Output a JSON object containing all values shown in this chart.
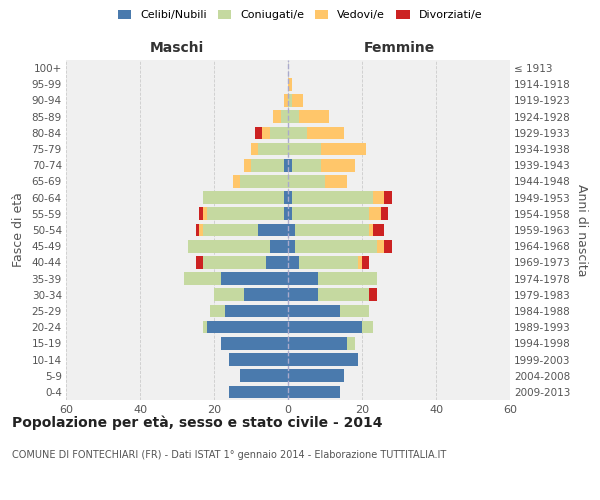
{
  "age_groups": [
    "0-4",
    "5-9",
    "10-14",
    "15-19",
    "20-24",
    "25-29",
    "30-34",
    "35-39",
    "40-44",
    "45-49",
    "50-54",
    "55-59",
    "60-64",
    "65-69",
    "70-74",
    "75-79",
    "80-84",
    "85-89",
    "90-94",
    "95-99",
    "100+"
  ],
  "birth_years": [
    "2009-2013",
    "2004-2008",
    "1999-2003",
    "1994-1998",
    "1989-1993",
    "1984-1988",
    "1979-1983",
    "1974-1978",
    "1969-1973",
    "1964-1968",
    "1959-1963",
    "1954-1958",
    "1949-1953",
    "1944-1948",
    "1939-1943",
    "1934-1938",
    "1929-1933",
    "1924-1928",
    "1919-1923",
    "1914-1918",
    "≤ 1913"
  ],
  "maschi": {
    "celibi": [
      16,
      13,
      16,
      18,
      22,
      17,
      12,
      18,
      6,
      5,
      8,
      1,
      1,
      0,
      1,
      0,
      0,
      0,
      0,
      0,
      0
    ],
    "coniugati": [
      0,
      0,
      0,
      0,
      1,
      4,
      8,
      10,
      17,
      22,
      15,
      21,
      22,
      13,
      9,
      8,
      5,
      2,
      0,
      0,
      0
    ],
    "vedovi": [
      0,
      0,
      0,
      0,
      0,
      0,
      0,
      0,
      0,
      0,
      1,
      1,
      0,
      2,
      2,
      2,
      2,
      2,
      1,
      0,
      0
    ],
    "divorziati": [
      0,
      0,
      0,
      0,
      0,
      0,
      0,
      0,
      2,
      0,
      1,
      1,
      0,
      0,
      0,
      0,
      2,
      0,
      0,
      0,
      0
    ]
  },
  "femmine": {
    "nubili": [
      14,
      15,
      19,
      16,
      20,
      14,
      8,
      8,
      3,
      2,
      2,
      1,
      1,
      0,
      1,
      0,
      0,
      0,
      0,
      0,
      0
    ],
    "coniugate": [
      0,
      0,
      0,
      2,
      3,
      8,
      14,
      16,
      16,
      22,
      20,
      21,
      22,
      10,
      8,
      9,
      5,
      3,
      1,
      0,
      0
    ],
    "vedove": [
      0,
      0,
      0,
      0,
      0,
      0,
      0,
      0,
      1,
      2,
      1,
      3,
      3,
      6,
      9,
      12,
      10,
      8,
      3,
      1,
      0
    ],
    "divorziate": [
      0,
      0,
      0,
      0,
      0,
      0,
      2,
      0,
      2,
      2,
      3,
      2,
      2,
      0,
      0,
      0,
      0,
      0,
      0,
      0,
      0
    ]
  },
  "colors": {
    "celibi": "#4a7aad",
    "coniugati": "#c5d9a0",
    "vedovi": "#ffc66a",
    "divorziati": "#cc2222"
  },
  "xlim": 60,
  "title": "Popolazione per età, sesso e stato civile - 2014",
  "subtitle": "COMUNE DI FONTECHIARI (FR) - Dati ISTAT 1° gennaio 2014 - Elaborazione TUTTITALIA.IT",
  "ylabel_left": "Fasce di età",
  "ylabel_right": "Anni di nascita",
  "xlabel_left": "Maschi",
  "xlabel_right": "Femmine"
}
